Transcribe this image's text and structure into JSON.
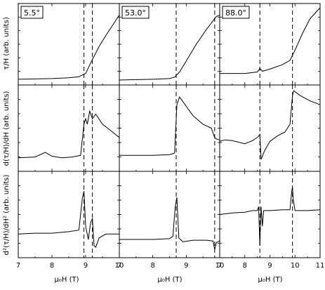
{
  "figure": {
    "ylabels": [
      "τ/H (arb. units)",
      "d(τ/H)/dH (arb. units)",
      "d²(τ/H)/dH² (arb. units)"
    ],
    "xlabel": "μ₀H (T)",
    "angles": [
      "5.5°",
      "53.0°",
      "88.0°"
    ]
  },
  "chart_data": [
    {
      "type": "line",
      "angle_label": "5.5°",
      "xlabel": "μ₀H (T)",
      "xlim": [
        7,
        10
      ],
      "x_ticks": [
        7,
        8,
        9,
        10
      ],
      "dashed_lines_T": [
        8.95,
        9.2
      ],
      "rows": [
        {
          "ylabel": "τ/H (arb. units)",
          "ylim": [
            0,
            1
          ],
          "x": [
            7,
            7.5,
            8,
            8.5,
            8.8,
            9.0,
            9.2,
            9.4,
            9.6,
            9.8,
            10
          ],
          "y": [
            0.02,
            0.025,
            0.03,
            0.04,
            0.055,
            0.1,
            0.29,
            0.47,
            0.62,
            0.76,
            0.9
          ]
        },
        {
          "ylabel": "d(τ/H)/dH (arb. units)",
          "ylim": [
            0,
            1
          ],
          "x": [
            7,
            7.5,
            7.8,
            8.0,
            8.3,
            8.6,
            8.85,
            8.95,
            9.0,
            9.05,
            9.12,
            9.2,
            9.3,
            9.5,
            9.8,
            10
          ],
          "y": [
            0.12,
            0.13,
            0.19,
            0.14,
            0.12,
            0.13,
            0.15,
            0.55,
            0.62,
            0.55,
            0.72,
            0.62,
            0.68,
            0.55,
            0.45,
            0.38
          ]
        },
        {
          "ylabel": "d²(τ/H)/dH² (arb. units)",
          "ylim": [
            0,
            1
          ],
          "x": [
            7,
            7.5,
            8,
            8.5,
            8.8,
            8.9,
            8.95,
            9.0,
            9.08,
            9.15,
            9.2,
            9.25,
            9.3,
            9.4,
            9.6,
            10
          ],
          "y": [
            0.25,
            0.26,
            0.26,
            0.28,
            0.3,
            0.7,
            0.8,
            0.35,
            0.18,
            0.4,
            0.45,
            0.1,
            0.08,
            0.2,
            0.25,
            0.25
          ]
        }
      ]
    },
    {
      "type": "line",
      "angle_label": "53.0°",
      "xlabel": "μ₀H (T)",
      "xlim": [
        7,
        10
      ],
      "x_ticks": [
        7,
        8,
        9,
        10
      ],
      "dashed_lines_T": [
        8.7,
        9.85
      ],
      "rows": [
        {
          "ylabel": "τ/H (arb. units)",
          "ylim": [
            0,
            1
          ],
          "x": [
            7,
            7.5,
            8,
            8.5,
            8.65,
            8.8,
            9.0,
            9.3,
            9.6,
            9.9,
            10
          ],
          "y": [
            0.01,
            0.015,
            0.02,
            0.03,
            0.05,
            0.12,
            0.27,
            0.5,
            0.7,
            0.88,
            0.9
          ]
        },
        {
          "ylabel": "d(τ/H)/dH (arb. units)",
          "ylim": [
            0,
            1
          ],
          "x": [
            7,
            7.5,
            8,
            8.5,
            8.65,
            8.72,
            8.8,
            9.0,
            9.2,
            9.5,
            9.75,
            9.85,
            9.9,
            10
          ],
          "y": [
            0.15,
            0.15,
            0.15,
            0.16,
            0.18,
            0.8,
            0.9,
            0.78,
            0.66,
            0.55,
            0.5,
            0.38,
            0.36,
            0.35
          ]
        },
        {
          "ylabel": "d²(τ/H)/dH² (arb. units)",
          "ylim": [
            0,
            1
          ],
          "x": [
            7,
            7.5,
            8,
            8.5,
            8.6,
            8.67,
            8.72,
            8.78,
            8.9,
            9.2,
            9.6,
            9.8,
            9.85,
            9.9,
            10
          ],
          "y": [
            0.18,
            0.18,
            0.18,
            0.19,
            0.22,
            0.6,
            0.72,
            0.2,
            0.15,
            0.17,
            0.17,
            0.16,
            0.05,
            0.14,
            0.16
          ]
        }
      ]
    },
    {
      "type": "line",
      "angle_label": "88.0°",
      "xlabel": "μ₀H (T)",
      "xlim": [
        7,
        11
      ],
      "x_ticks": [
        7,
        8,
        9,
        10,
        11
      ],
      "dashed_lines_T": [
        8.6,
        9.9
      ],
      "rows": [
        {
          "ylabel": "τ/H (arb. units)",
          "ylim": [
            0,
            1
          ],
          "x": [
            7,
            7.5,
            8,
            8.5,
            8.6,
            8.7,
            9.0,
            9.5,
            9.8,
            10.0,
            10.3,
            10.6,
            11
          ],
          "y": [
            0.1,
            0.1,
            0.1,
            0.12,
            0.17,
            0.13,
            0.16,
            0.22,
            0.28,
            0.42,
            0.65,
            0.85,
            1.0
          ]
        },
        {
          "ylabel": "d(τ/H)/dH (arb. units)",
          "ylim": [
            0,
            1
          ],
          "x": [
            7,
            7.2,
            7.5,
            8,
            8.3,
            8.5,
            8.6,
            8.65,
            8.8,
            9.0,
            9.3,
            9.6,
            9.8,
            9.9,
            9.95,
            10.2,
            10.6,
            11
          ],
          "y": [
            0.33,
            0.35,
            0.34,
            0.3,
            0.34,
            0.38,
            0.42,
            0.1,
            0.22,
            0.33,
            0.4,
            0.45,
            0.55,
            0.92,
            0.98,
            0.92,
            0.85,
            0.8
          ]
        },
        {
          "ylabel": "d²(τ/H)/dH² (arb. units)",
          "ylim": [
            0,
            1
          ],
          "x": [
            7,
            7.5,
            8,
            8.3,
            8.5,
            8.55,
            8.6,
            8.65,
            8.7,
            8.75,
            9.0,
            9.5,
            9.8,
            9.87,
            9.9,
            9.93,
            10.0,
            10.5,
            11
          ],
          "y": [
            0.5,
            0.52,
            0.53,
            0.55,
            0.55,
            0.6,
            0.1,
            0.6,
            0.35,
            0.55,
            0.55,
            0.56,
            0.56,
            0.8,
            0.85,
            0.7,
            0.55,
            0.55,
            0.56
          ]
        }
      ]
    }
  ]
}
